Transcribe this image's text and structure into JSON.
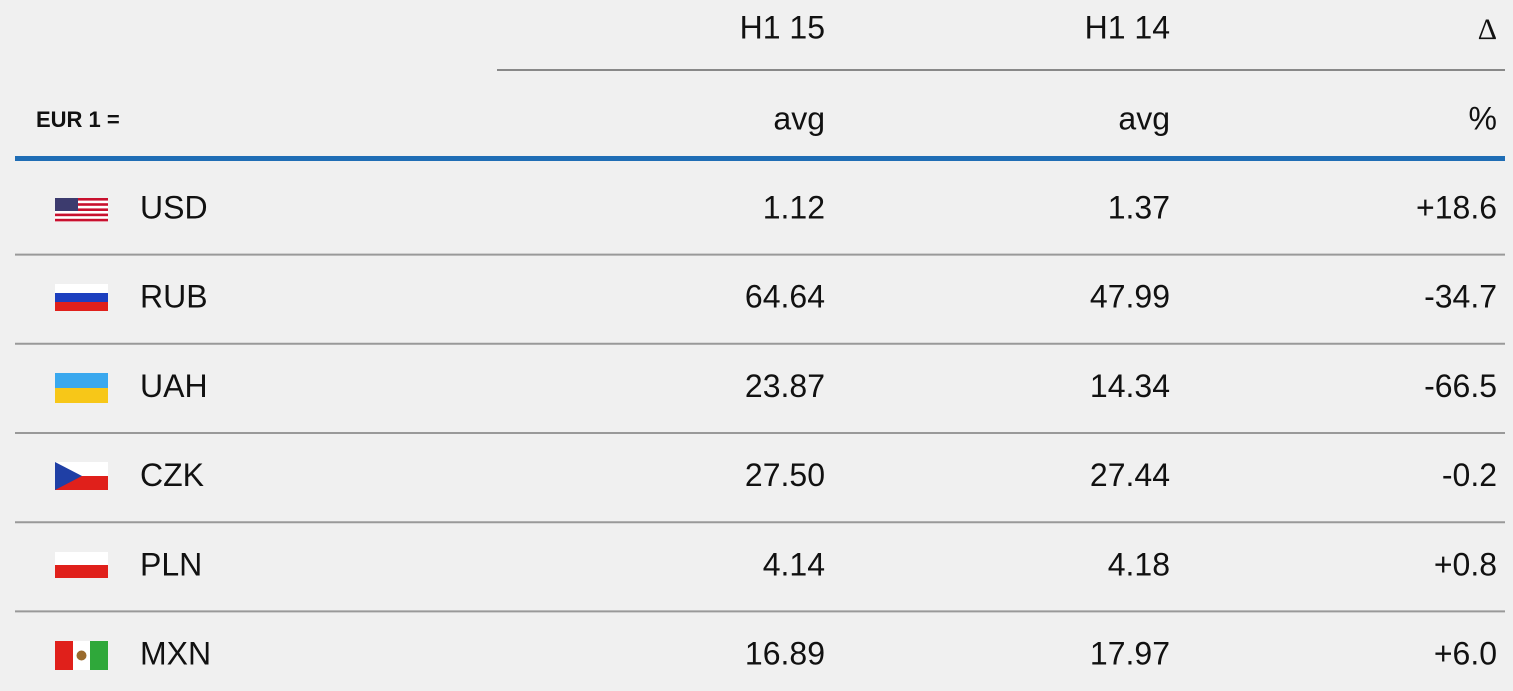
{
  "header": {
    "period_1": "H1 15",
    "period_2": "H1 14",
    "delta": "Δ",
    "base": "EUR 1 =",
    "unit_1": "avg",
    "unit_2": "avg",
    "unit_delta": "%"
  },
  "table": {
    "rows": [
      [
        "USD",
        "1.12",
        "1.37",
        "+18.6"
      ],
      [
        "RUB",
        "64.64",
        "47.99",
        "-34.7"
      ],
      [
        "UAH",
        "23.87",
        "14.34",
        "-66.5"
      ],
      [
        "CZK",
        "27.50",
        "27.44",
        "-0.2"
      ],
      [
        "PLN",
        "4.14",
        "4.18",
        "+0.8"
      ],
      [
        "MXN",
        "16.89",
        "17.97",
        "+6.0"
      ]
    ]
  }
}
